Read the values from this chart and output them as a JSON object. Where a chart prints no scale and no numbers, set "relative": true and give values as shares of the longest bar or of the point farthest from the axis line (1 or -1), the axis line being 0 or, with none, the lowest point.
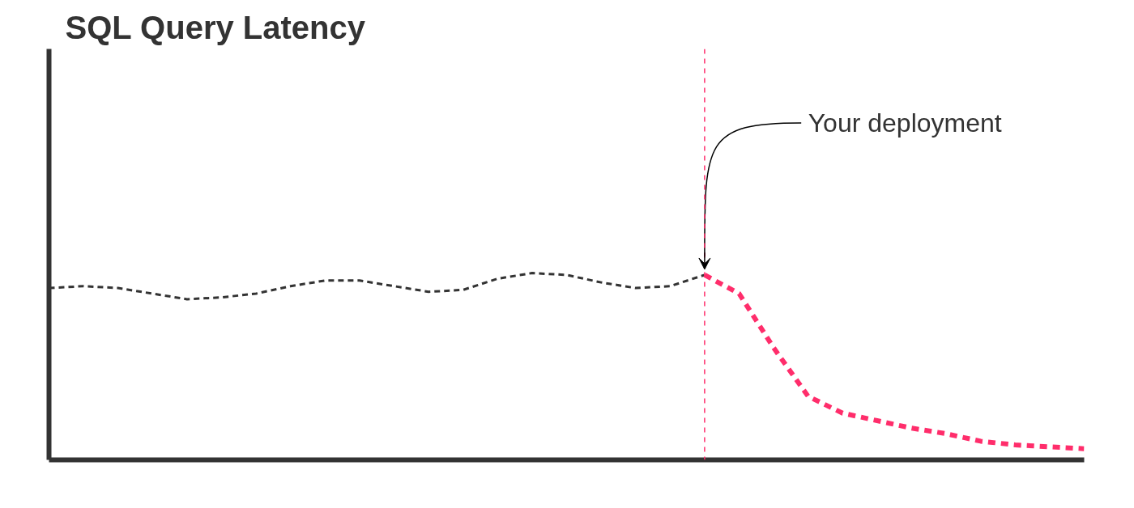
{
  "chart_data": {
    "type": "line",
    "title": "SQL Query Latency",
    "relative": true,
    "line_style": "dashed",
    "marker": "none",
    "grid": false,
    "tick_labels": false,
    "categories": [
      null,
      null,
      null,
      null,
      null,
      null,
      null,
      null,
      null,
      null,
      null,
      null,
      null,
      null,
      null,
      null,
      null,
      null,
      null,
      null,
      null,
      null,
      null,
      null,
      null,
      null,
      null,
      null,
      null,
      null,
      null
    ],
    "series": [
      {
        "color": "#333333",
        "values": [
          0.92,
          0.93,
          0.92,
          0.89,
          0.86,
          0.87,
          0.89,
          0.93,
          0.96,
          0.96,
          0.93,
          0.9,
          0.91,
          0.97,
          1.0,
          0.99,
          0.95,
          0.92,
          0.93,
          0.99,
          null,
          null,
          null,
          null,
          null,
          null,
          null,
          null,
          null,
          null,
          null
        ]
      },
      {
        "color": "#ff2d6b",
        "values": [
          null,
          null,
          null,
          null,
          null,
          null,
          null,
          null,
          null,
          null,
          null,
          null,
          null,
          null,
          null,
          null,
          null,
          null,
          null,
          0.99,
          0.89,
          0.6,
          0.34,
          0.25,
          0.21,
          0.17,
          0.14,
          0.1,
          0.08,
          0.07,
          0.06
        ]
      }
    ],
    "annotations": [
      "Your deployment"
    ]
  }
}
